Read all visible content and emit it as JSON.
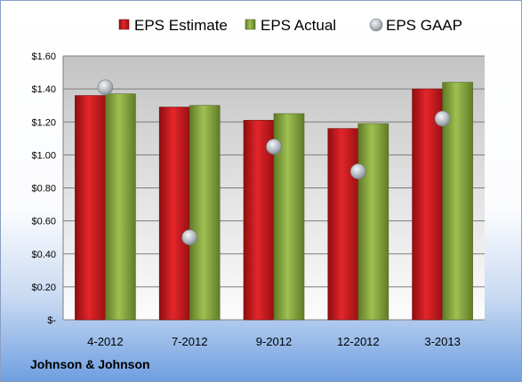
{
  "chart_data": {
    "type": "bar",
    "categories": [
      "4-2012",
      "7-2012",
      "9-2012",
      "12-2012",
      "3-2013"
    ],
    "series": [
      {
        "name": "EPS Estimate",
        "kind": "bar",
        "color": "#c0171b",
        "values": [
          1.36,
          1.29,
          1.21,
          1.16,
          1.4
        ]
      },
      {
        "name": "EPS Actual",
        "kind": "bar",
        "color": "#7f9e3a",
        "values": [
          1.37,
          1.3,
          1.25,
          1.19,
          1.44
        ]
      },
      {
        "name": "EPS GAAP",
        "kind": "marker",
        "color": "#a9b0b8",
        "values": [
          1.41,
          0.5,
          1.05,
          0.9,
          1.22
        ]
      }
    ],
    "ylim": [
      0,
      1.6
    ],
    "yticks": [
      0,
      0.2,
      0.4,
      0.6,
      0.8,
      1.0,
      1.2,
      1.4,
      1.6
    ],
    "ytick_labels": [
      "$-",
      "$0.20",
      "$0.40",
      "$0.60",
      "$0.80",
      "$1.00",
      "$1.20",
      "$1.40",
      "$1.60"
    ],
    "grid": true,
    "legend": "top"
  },
  "footer": {
    "company": "Johnson & Johnson"
  }
}
